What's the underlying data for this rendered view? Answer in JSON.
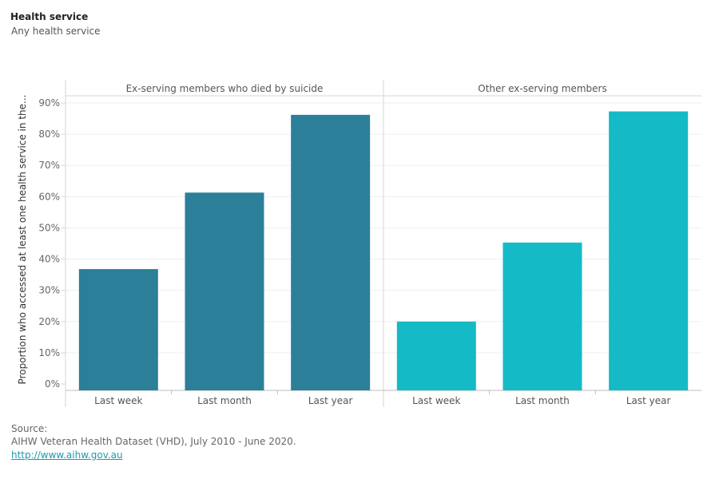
{
  "header": {
    "title": "Health service",
    "subtitle": "Any health service"
  },
  "chart_data": {
    "type": "bar",
    "ylabel": "Proportion who accessed at least one health service in the...",
    "ylim": [
      0,
      90
    ],
    "yticks": [
      "0%",
      "10%",
      "20%",
      "30%",
      "40%",
      "50%",
      "60%",
      "70%",
      "80%",
      "90%"
    ],
    "grid": true,
    "categories": [
      "Last week",
      "Last month",
      "Last year"
    ],
    "panels": [
      {
        "name": "Ex-serving members who died by suicide",
        "color": "#2c7f99",
        "values": [
          36.8,
          61.3,
          86.2
        ]
      },
      {
        "name": "Other ex-serving members",
        "color": "#14bac6",
        "values": [
          20.0,
          45.3,
          87.3
        ]
      }
    ]
  },
  "source": {
    "label": "Source:",
    "text": "AIHW Veteran Health Dataset (VHD), July 2010 - June 2020.",
    "link": "http://www.aihw.gov.au"
  }
}
